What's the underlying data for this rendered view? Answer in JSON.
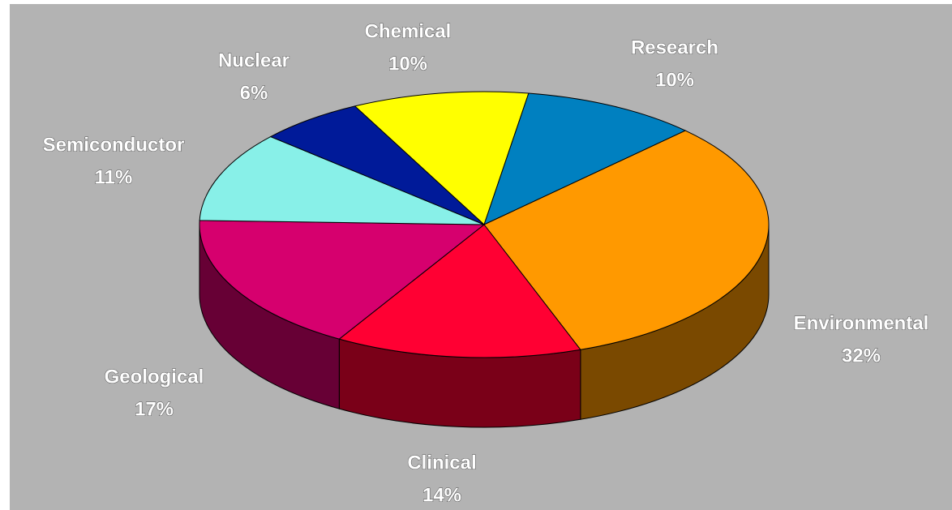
{
  "chart_data": {
    "type": "pie3d",
    "categories": [
      "Chemical",
      "Research",
      "Environmental",
      "Clinical",
      "Geological",
      "Semiconductor",
      "Nuclear"
    ],
    "values": [
      10,
      10,
      32,
      14,
      17,
      11,
      6
    ],
    "value_labels": [
      "10%",
      "10%",
      "32%",
      "14%",
      "17%",
      "11%",
      "6%"
    ],
    "colors": [
      "#ffff00",
      "#0080c0",
      "#ff9900",
      "#ff0033",
      "#d6006e",
      "#88f0e8",
      "#001a99"
    ]
  }
}
